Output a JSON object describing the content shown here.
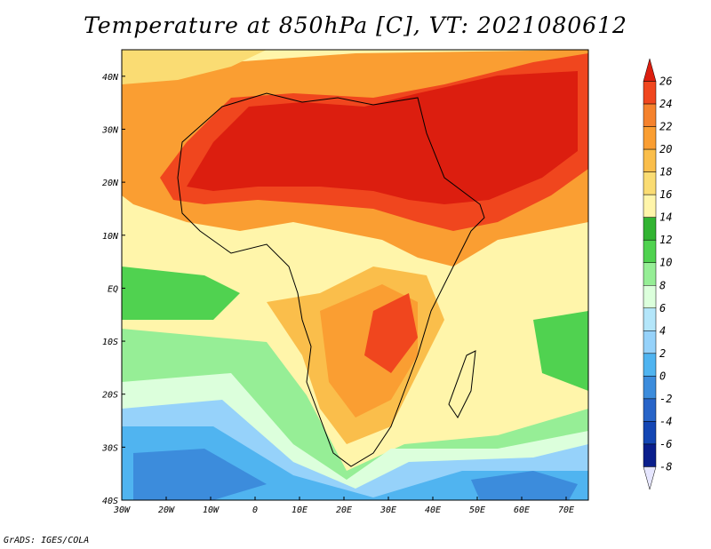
{
  "title": "Temperature at 850hPa [C], VT: 2021080612",
  "credit": "GrADS: IGES/COLA",
  "map": {
    "lon_labels": [
      "30W",
      "20W",
      "10W",
      "0",
      "10E",
      "20E",
      "30E",
      "40E",
      "50E",
      "60E",
      "70E"
    ],
    "lat_labels": [
      "40N",
      "30N",
      "20N",
      "10N",
      "EQ",
      "10S",
      "20S",
      "30S",
      "40S"
    ],
    "lon_range": [
      -30,
      75
    ],
    "lat_range": [
      -40,
      45
    ]
  },
  "colorbar": {
    "labels": [
      "26",
      "24",
      "22",
      "20",
      "18",
      "16",
      "14",
      "12",
      "10",
      "8",
      "6",
      "4",
      "2",
      "0",
      "-2",
      "-4",
      "-6",
      "-8"
    ],
    "colors": [
      "#dc1e0f",
      "#f0461e",
      "#f5822d",
      "#fa9e32",
      "#fabe4b",
      "#fadc73",
      "#fff5aa",
      "#32b432",
      "#50d250",
      "#96ee96",
      "#dcffdc",
      "#b4e6fa",
      "#96d2fa",
      "#50b4f0",
      "#3c8cdc",
      "#2864c8",
      "#1446b4",
      "#0a1e8c",
      "#e6e6ff"
    ]
  }
}
